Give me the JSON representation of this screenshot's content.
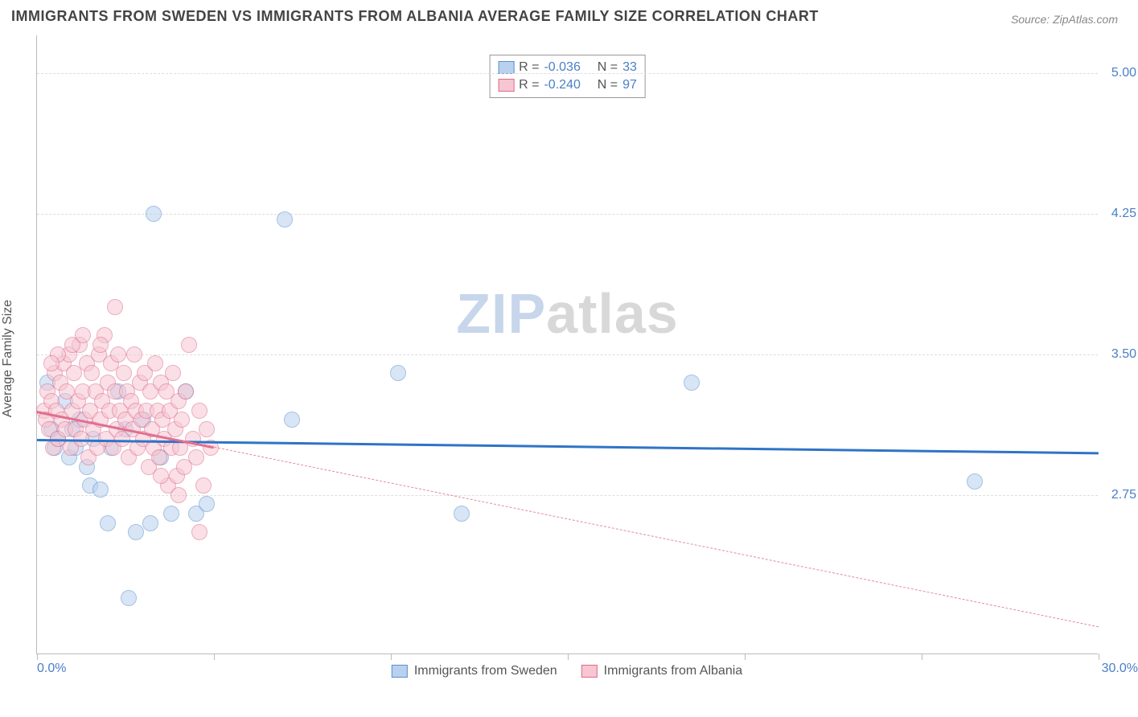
{
  "title": "IMMIGRANTS FROM SWEDEN VS IMMIGRANTS FROM ALBANIA AVERAGE FAMILY SIZE CORRELATION CHART",
  "source": "Source: ZipAtlas.com",
  "ylabel": "Average Family Size",
  "watermark_a": "ZIP",
  "watermark_b": "atlas",
  "chart": {
    "type": "scatter",
    "xlim": [
      0,
      30
    ],
    "ylim": [
      1.9,
      5.2
    ],
    "x_ticks": [
      0,
      5,
      10,
      15,
      20,
      25,
      30
    ],
    "y_ticks": [
      2.75,
      3.5,
      4.25,
      5.0
    ],
    "y_tick_labels": [
      "2.75",
      "3.50",
      "4.25",
      "5.00"
    ],
    "x_min_label": "0.0%",
    "x_max_label": "30.0%",
    "grid_color": "#dddddd",
    "axis_color": "#bbbbbb",
    "tick_label_color": "#4a7fc8",
    "background_color": "#ffffff",
    "marker_radius": 10,
    "marker_opacity": 0.55,
    "series": [
      {
        "name": "Immigrants from Sweden",
        "color_fill": "#b9d1ee",
        "color_stroke": "#5a8fd0",
        "R": "-0.036",
        "N": "33",
        "trend": {
          "x1": 0,
          "y1": 3.05,
          "x2": 30,
          "y2": 2.98,
          "width": 3,
          "dash": "solid",
          "color": "#2f74c6"
        },
        "points": [
          [
            0.3,
            3.35
          ],
          [
            0.4,
            3.1
          ],
          [
            0.5,
            3.0
          ],
          [
            0.6,
            3.05
          ],
          [
            0.8,
            3.25
          ],
          [
            0.9,
            2.95
          ],
          [
            1.0,
            3.1
          ],
          [
            1.1,
            3.0
          ],
          [
            1.2,
            3.15
          ],
          [
            1.4,
            2.9
          ],
          [
            1.5,
            2.8
          ],
          [
            1.6,
            3.05
          ],
          [
            1.8,
            2.78
          ],
          [
            2.0,
            2.6
          ],
          [
            2.1,
            3.0
          ],
          [
            2.3,
            3.3
          ],
          [
            2.5,
            3.1
          ],
          [
            2.8,
            2.55
          ],
          [
            3.0,
            3.15
          ],
          [
            3.2,
            2.6
          ],
          [
            3.3,
            4.25
          ],
          [
            3.5,
            2.95
          ],
          [
            3.8,
            2.65
          ],
          [
            4.2,
            3.3
          ],
          [
            4.5,
            2.65
          ],
          [
            4.8,
            2.7
          ],
          [
            2.6,
            2.2
          ],
          [
            7.0,
            4.22
          ],
          [
            7.2,
            3.15
          ],
          [
            10.2,
            3.4
          ],
          [
            12.0,
            2.65
          ],
          [
            18.5,
            3.35
          ],
          [
            26.5,
            2.82
          ]
        ]
      },
      {
        "name": "Immigrants from Albania",
        "color_fill": "#f6c6d2",
        "color_stroke": "#e06a8b",
        "R": "-0.240",
        "N": "97",
        "trend": {
          "x1": 0,
          "y1": 3.2,
          "x2": 30,
          "y2": 2.05,
          "width": 1,
          "dash": "dashed",
          "color": "#e48aa0"
        },
        "trend_solid": {
          "x1": 0,
          "y1": 3.2,
          "x2": 5.0,
          "y2": 3.01,
          "width": 3,
          "dash": "solid",
          "color": "#e06a8b"
        },
        "points": [
          [
            0.2,
            3.2
          ],
          [
            0.25,
            3.15
          ],
          [
            0.3,
            3.3
          ],
          [
            0.35,
            3.1
          ],
          [
            0.4,
            3.25
          ],
          [
            0.45,
            3.0
          ],
          [
            0.5,
            3.4
          ],
          [
            0.55,
            3.2
          ],
          [
            0.6,
            3.05
          ],
          [
            0.65,
            3.35
          ],
          [
            0.7,
            3.15
          ],
          [
            0.75,
            3.45
          ],
          [
            0.8,
            3.1
          ],
          [
            0.85,
            3.3
          ],
          [
            0.9,
            3.5
          ],
          [
            0.95,
            3.0
          ],
          [
            1.0,
            3.2
          ],
          [
            1.05,
            3.4
          ],
          [
            1.1,
            3.1
          ],
          [
            1.15,
            3.25
          ],
          [
            1.2,
            3.55
          ],
          [
            1.25,
            3.05
          ],
          [
            1.3,
            3.3
          ],
          [
            1.35,
            3.15
          ],
          [
            1.4,
            3.45
          ],
          [
            1.45,
            2.95
          ],
          [
            1.5,
            3.2
          ],
          [
            1.55,
            3.4
          ],
          [
            1.6,
            3.1
          ],
          [
            1.65,
            3.3
          ],
          [
            1.7,
            3.0
          ],
          [
            1.75,
            3.5
          ],
          [
            1.8,
            3.15
          ],
          [
            1.85,
            3.25
          ],
          [
            1.9,
            3.6
          ],
          [
            1.95,
            3.05
          ],
          [
            2.0,
            3.35
          ],
          [
            2.05,
            3.2
          ],
          [
            2.1,
            3.45
          ],
          [
            2.15,
            3.0
          ],
          [
            2.2,
            3.3
          ],
          [
            2.25,
            3.1
          ],
          [
            2.3,
            3.5
          ],
          [
            2.35,
            3.2
          ],
          [
            2.4,
            3.05
          ],
          [
            2.45,
            3.4
          ],
          [
            2.5,
            3.15
          ],
          [
            2.55,
            3.3
          ],
          [
            2.6,
            2.95
          ],
          [
            2.65,
            3.25
          ],
          [
            2.7,
            3.1
          ],
          [
            2.75,
            3.5
          ],
          [
            2.8,
            3.2
          ],
          [
            2.85,
            3.0
          ],
          [
            2.9,
            3.35
          ],
          [
            2.95,
            3.15
          ],
          [
            3.0,
            3.05
          ],
          [
            3.05,
            3.4
          ],
          [
            3.1,
            3.2
          ],
          [
            3.15,
            2.9
          ],
          [
            3.2,
            3.3
          ],
          [
            3.25,
            3.1
          ],
          [
            3.3,
            3.0
          ],
          [
            3.35,
            3.45
          ],
          [
            3.4,
            3.2
          ],
          [
            3.45,
            2.95
          ],
          [
            3.5,
            3.35
          ],
          [
            3.55,
            3.15
          ],
          [
            3.6,
            3.05
          ],
          [
            3.65,
            3.3
          ],
          [
            3.7,
            2.8
          ],
          [
            3.75,
            3.2
          ],
          [
            3.8,
            3.0
          ],
          [
            3.85,
            3.4
          ],
          [
            3.9,
            3.1
          ],
          [
            3.95,
            2.85
          ],
          [
            4.0,
            3.25
          ],
          [
            4.05,
            3.0
          ],
          [
            4.1,
            3.15
          ],
          [
            4.15,
            2.9
          ],
          [
            4.2,
            3.3
          ],
          [
            4.3,
            3.55
          ],
          [
            4.4,
            3.05
          ],
          [
            4.5,
            2.95
          ],
          [
            4.6,
            3.2
          ],
          [
            4.7,
            2.8
          ],
          [
            4.8,
            3.1
          ],
          [
            4.9,
            3.0
          ],
          [
            2.2,
            3.75
          ],
          [
            1.0,
            3.55
          ],
          [
            1.3,
            3.6
          ],
          [
            0.6,
            3.5
          ],
          [
            0.4,
            3.45
          ],
          [
            3.5,
            2.85
          ],
          [
            4.0,
            2.75
          ],
          [
            1.8,
            3.55
          ],
          [
            4.6,
            2.55
          ]
        ]
      }
    ]
  },
  "legend_top_labels": {
    "R": "R =",
    "N": "N ="
  },
  "legend_bottom": [
    {
      "label": "Immigrants from Sweden",
      "fill": "#b9d1ee",
      "stroke": "#5a8fd0"
    },
    {
      "label": "Immigrants from Albania",
      "fill": "#f6c6d2",
      "stroke": "#e06a8b"
    }
  ]
}
